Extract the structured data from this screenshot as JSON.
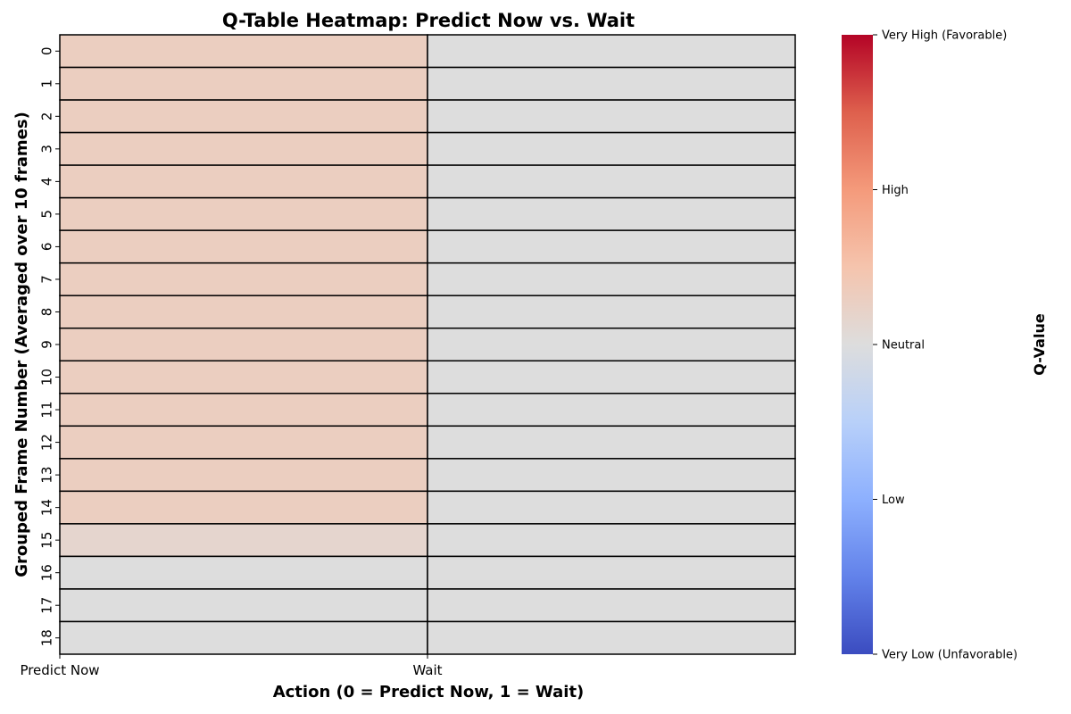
{
  "chart_data": {
    "type": "heatmap",
    "title": "Q-Table Heatmap: Predict Now vs. Wait",
    "xlabel": "Action (0 = Predict Now, 1 = Wait)",
    "ylabel": "Grouped Frame Number (Averaged over 10 frames)",
    "x_categories": [
      "Predict Now",
      "Wait"
    ],
    "y_categories": [
      "0",
      "1",
      "2",
      "3",
      "4",
      "5",
      "6",
      "7",
      "8",
      "9",
      "10",
      "11",
      "12",
      "13",
      "14",
      "15",
      "16",
      "17",
      "18"
    ],
    "values": [
      [
        0.15,
        0.0
      ],
      [
        0.15,
        0.0
      ],
      [
        0.15,
        0.0
      ],
      [
        0.15,
        0.0
      ],
      [
        0.15,
        0.0
      ],
      [
        0.15,
        0.0
      ],
      [
        0.15,
        0.0
      ],
      [
        0.15,
        0.0
      ],
      [
        0.15,
        0.0
      ],
      [
        0.15,
        0.0
      ],
      [
        0.15,
        0.0
      ],
      [
        0.15,
        0.0
      ],
      [
        0.15,
        0.0
      ],
      [
        0.15,
        0.0
      ],
      [
        0.15,
        0.0
      ],
      [
        0.08,
        0.0
      ],
      [
        0.0,
        0.0
      ],
      [
        0.0,
        0.0
      ],
      [
        0.0,
        0.0
      ]
    ],
    "value_range": [
      -1,
      1
    ],
    "colormap": "coolwarm",
    "colorbar": {
      "label": "Q-Value",
      "ticks": [
        {
          "value": 1,
          "label": "Very High (Favorable)"
        },
        {
          "value": 0.5,
          "label": "High"
        },
        {
          "value": 0,
          "label": "Neutral"
        },
        {
          "value": -0.5,
          "label": "Low"
        },
        {
          "value": -1,
          "label": "Very Low (Unfavorable)"
        }
      ]
    },
    "cell_borders": true
  }
}
